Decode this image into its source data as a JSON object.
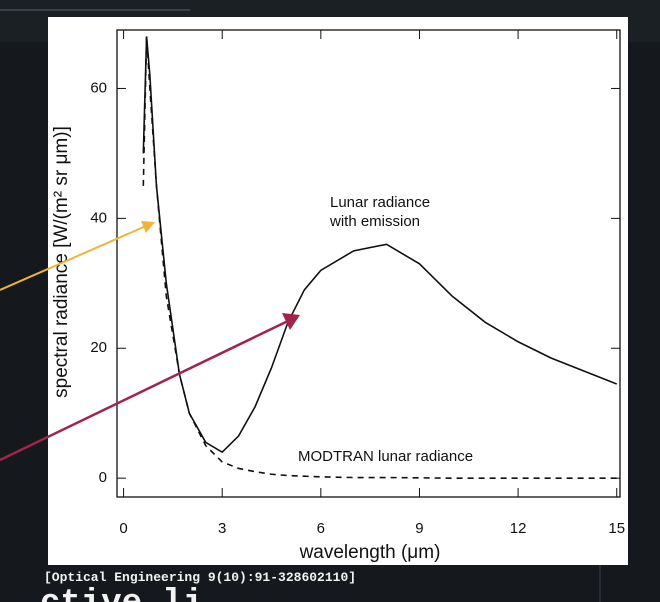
{
  "chart_data": {
    "type": "line",
    "x_label": "wavelength (μm)",
    "y_label": "spectral radiance [W/(m² sr μm)]",
    "x": [
      0.6,
      0.7,
      0.8,
      1.0,
      1.3,
      1.7,
      2.0,
      2.5,
      3.0,
      3.5,
      4,
      4.5,
      5,
      5.5,
      6,
      7,
      8,
      9,
      10,
      11,
      12,
      13,
      14,
      15
    ],
    "series": [
      {
        "name": "Lunar radiance with emission",
        "color": "#111111",
        "dash": false,
        "values": [
          50,
          68,
          62,
          45,
          30,
          16,
          10,
          5.5,
          4,
          6.5,
          11,
          17,
          24,
          29,
          32,
          35,
          36,
          33,
          28,
          24,
          21,
          18.5,
          16.5,
          14.5
        ]
      },
      {
        "name": "MODTRAN lunar radiance",
        "color": "#111111",
        "dash": true,
        "values": [
          45,
          68,
          60,
          45,
          28,
          16,
          10,
          5,
          2.5,
          1.5,
          1,
          0.6,
          0.4,
          0.3,
          0.2,
          0.1,
          0.1,
          0.05,
          0,
          0,
          0,
          0,
          0,
          0
        ]
      }
    ],
    "annotations": [
      "Lunar radiance",
      "with emission",
      "MODTRAN lunar radiance"
    ],
    "xlim": [
      -0.2,
      15.1
    ],
    "ylim": [
      -2.9,
      69
    ],
    "xticks": [
      0,
      3,
      6,
      9,
      12,
      15
    ],
    "yticks": [
      0,
      20,
      40,
      60
    ]
  },
  "caption": "[Optical Engineering 9(10):91-328602110]",
  "footer_text": "ctive li"
}
